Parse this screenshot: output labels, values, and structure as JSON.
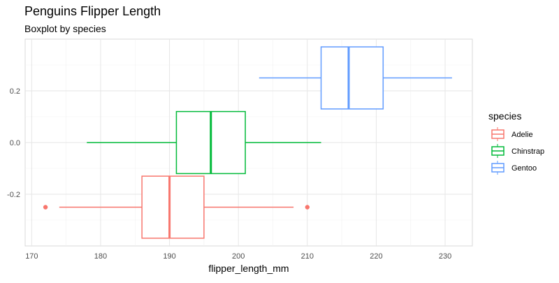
{
  "chart_data": {
    "type": "boxplot",
    "title": "Penguins Flipper Length",
    "subtitle": "Boxplot by species",
    "xlabel": "flipper_length_mm",
    "ylabel": "",
    "xlim": [
      169.05,
      233.95
    ],
    "ylim": [
      -0.4,
      0.4
    ],
    "x_ticks": [
      170,
      180,
      190,
      200,
      210,
      220,
      230
    ],
    "y_ticks": [
      -0.2,
      0.0,
      0.2
    ],
    "y_tick_labels": [
      "-0.2",
      "0.0",
      "0.2"
    ],
    "grid": true,
    "legend": {
      "title": "species",
      "position": "right"
    },
    "series": [
      {
        "name": "Adelie",
        "color": "#F8766D",
        "y_center": -0.25,
        "half_height": 0.12,
        "whisker_low": 174,
        "q1": 186,
        "median": 190,
        "q3": 195,
        "whisker_high": 208,
        "outliers": [
          172,
          210
        ]
      },
      {
        "name": "Chinstrap",
        "color": "#00BA38",
        "y_center": 0.0,
        "half_height": 0.12,
        "whisker_low": 178,
        "q1": 191,
        "median": 196,
        "q3": 201,
        "whisker_high": 212,
        "outliers": []
      },
      {
        "name": "Gentoo",
        "color": "#619CFF",
        "y_center": 0.25,
        "half_height": 0.12,
        "whisker_low": 203,
        "q1": 212,
        "median": 216,
        "q3": 221,
        "whisker_high": 231,
        "outliers": []
      }
    ]
  }
}
